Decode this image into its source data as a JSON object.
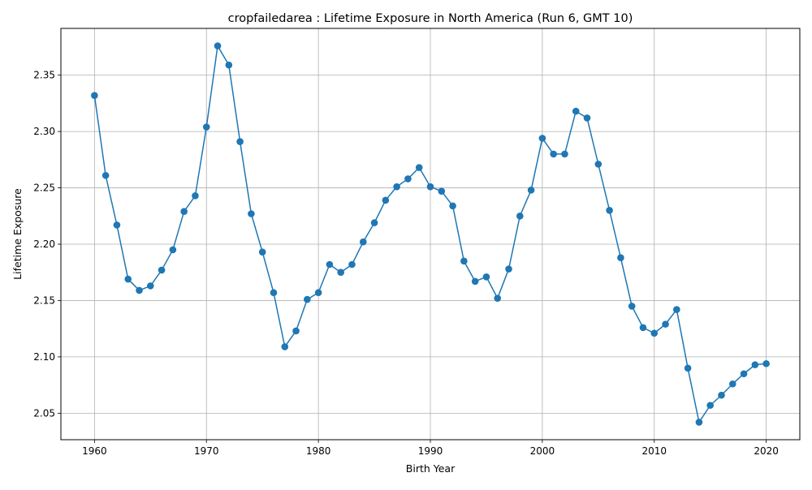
{
  "chart_data": {
    "type": "line",
    "title": "cropfailedarea : Lifetime Exposure in North America (Run 6, GMT 10)",
    "xlabel": "Birth Year",
    "ylabel": "Lifetime Exposure",
    "xlim": [
      1957,
      2023
    ],
    "ylim": [
      2.0265,
      2.3915
    ],
    "xticks": [
      1960,
      1970,
      1980,
      1990,
      2000,
      2010,
      2020
    ],
    "yticks": [
      2.05,
      2.1,
      2.15,
      2.2,
      2.25,
      2.3,
      2.35
    ],
    "ytick_labels": [
      "2.05",
      "2.10",
      "2.15",
      "2.20",
      "2.25",
      "2.30",
      "2.35"
    ],
    "grid": true,
    "marker": "circle",
    "series": [
      {
        "color": "#1f77b4",
        "x": [
          1960,
          1961,
          1962,
          1963,
          1964,
          1965,
          1966,
          1967,
          1968,
          1969,
          1970,
          1971,
          1972,
          1973,
          1974,
          1975,
          1976,
          1977,
          1978,
          1979,
          1980,
          1981,
          1982,
          1983,
          1984,
          1985,
          1986,
          1987,
          1988,
          1989,
          1990,
          1991,
          1992,
          1993,
          1994,
          1995,
          1996,
          1997,
          1998,
          1999,
          2000,
          2001,
          2002,
          2003,
          2004,
          2005,
          2006,
          2007,
          2008,
          2009,
          2010,
          2011,
          2012,
          2013,
          2014,
          2015,
          2016,
          2017,
          2018,
          2019,
          2020
        ],
        "y": [
          2.332,
          2.261,
          2.217,
          2.169,
          2.159,
          2.163,
          2.177,
          2.195,
          2.229,
          2.243,
          2.304,
          2.376,
          2.359,
          2.291,
          2.227,
          2.193,
          2.157,
          2.109,
          2.123,
          2.151,
          2.157,
          2.182,
          2.175,
          2.182,
          2.202,
          2.219,
          2.239,
          2.251,
          2.258,
          2.268,
          2.251,
          2.247,
          2.234,
          2.185,
          2.167,
          2.171,
          2.152,
          2.178,
          2.225,
          2.248,
          2.294,
          2.28,
          2.28,
          2.318,
          2.312,
          2.271,
          2.23,
          2.188,
          2.145,
          2.126,
          2.121,
          2.129,
          2.142,
          2.09,
          2.042,
          2.057,
          2.066,
          2.076,
          2.085,
          2.093,
          2.094
        ]
      }
    ]
  }
}
